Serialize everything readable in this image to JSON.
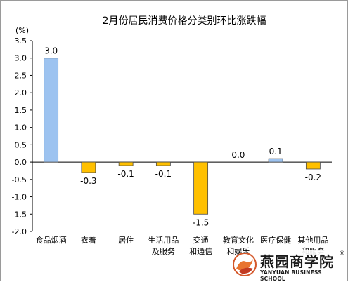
{
  "chart_data": {
    "type": "bar",
    "title": "2月份居民消费价格分类别环比涨跌幅",
    "unit_label": "(%)",
    "ylim": [
      -2.0,
      3.5
    ],
    "yticks": [
      "3.5",
      "3.0",
      "2.5",
      "2.0",
      "1.5",
      "1.0",
      "0.5",
      "0.0",
      "-0.5",
      "-1.0",
      "-1.5",
      "-2.0"
    ],
    "grid": false,
    "colors": {
      "positive": "#9dc3f0",
      "negative": "#ffc000",
      "outline": "#4a4a4a"
    },
    "categories": [
      [
        "食品烟酒"
      ],
      [
        "衣着"
      ],
      [
        "居住"
      ],
      [
        "生活用品",
        "及服务"
      ],
      [
        "交通",
        "和通信"
      ],
      [
        "教育文化",
        "和娱乐"
      ],
      [
        "医疗保健"
      ],
      [
        "其他用品",
        "和服务"
      ]
    ],
    "values": [
      3.0,
      -0.3,
      -0.1,
      -0.1,
      -1.5,
      0.0,
      0.1,
      -0.2
    ],
    "value_labels": [
      "3.0",
      "-0.3",
      "-0.1",
      "-0.1",
      "-1.5",
      "0.0",
      "0.1",
      "-0.2"
    ]
  },
  "watermark": {
    "name": "燕园商学院",
    "reg_mark": "®",
    "english": "YANYUAN BUSINESS SCHOOL"
  }
}
